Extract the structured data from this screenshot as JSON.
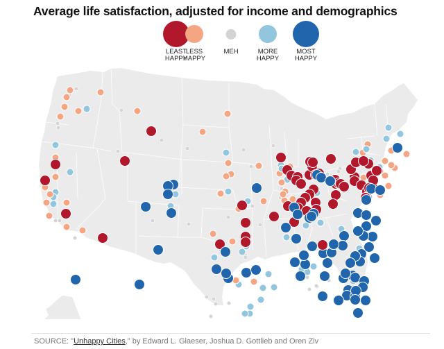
{
  "title": "Average life satisfaction, adjusted for income and demographics",
  "legend": [
    {
      "key": "least",
      "label_line1": "LEAST",
      "label_line2": "HAPPY",
      "color": "#b2182b"
    },
    {
      "key": "less",
      "label_line1": "LESS",
      "label_line2": "HAPPY",
      "color": "#f4a582"
    },
    {
      "key": "meh",
      "label_line1": "MEH",
      "label_line2": "",
      "color": "#d4d4d4"
    },
    {
      "key": "more",
      "label_line1": "MORE",
      "label_line2": "HAPPY",
      "color": "#92c5de"
    },
    {
      "key": "most",
      "label_line1": "MOST",
      "label_line2": "HAPPY",
      "color": "#2166ac"
    }
  ],
  "colors": {
    "land": "#ebebeb",
    "state_border": "#ffffff"
  },
  "source": {
    "prefix": "SOURCE: \"",
    "link_text": "Unhappy Cities",
    "suffix": ",\" by Edward L. Glaeser, Joshua D. Gottlieb and Oren Ziv"
  },
  "chart_data": {
    "type": "scatter",
    "title": "Average life satisfaction, adjusted for income and demographics",
    "subject": "U.S. metropolitan areas (map)",
    "legend_entries": [
      "LEAST HAPPY",
      "LESS HAPPY",
      "MEH",
      "MORE HAPPY",
      "MOST HAPPY"
    ],
    "categories_order": [
      "least",
      "less",
      "meh",
      "more",
      "most"
    ],
    "regional_summary": {
      "rust_belt_great_lakes_northeast": "least",
      "california_bay_area": "least",
      "southeast_gulf_coast_texas": "most",
      "colorado_front_range": "most",
      "alaska": "most",
      "hawaii": "most"
    },
    "dots": [
      "meh",
      "meh",
      "less",
      "less",
      "less",
      "less",
      "more",
      "less",
      "less",
      "meh",
      "meh",
      "more",
      "less",
      "meh",
      "least",
      "meh",
      "least",
      "meh",
      "less",
      "more",
      "least",
      "least",
      "less",
      "less",
      "more",
      "more",
      "less",
      "less",
      "least",
      "less",
      "less",
      "more",
      "meh",
      "meh",
      "less",
      "meh",
      "less",
      "least",
      "less",
      "meh",
      "least",
      "less",
      "meh",
      "meh",
      "less",
      "less",
      "more",
      "least",
      "meh",
      "least",
      "more",
      "meh",
      "meh",
      "most",
      "most",
      "most",
      "more",
      "most",
      "more",
      "most",
      "meh",
      "most",
      "least",
      "most",
      "most",
      "meh",
      "more",
      "more",
      "most",
      "less",
      "more",
      "most",
      "more",
      "meh",
      "less",
      "less",
      "more",
      "less",
      "more",
      "more",
      "meh",
      "meh",
      "more",
      "less",
      "meh",
      "meh",
      "least",
      "least",
      "less",
      "meh",
      "meh",
      "less",
      "least",
      "less",
      "more",
      "less",
      "meh",
      "less",
      "less",
      "least",
      "least",
      "least",
      "least",
      "least",
      "least",
      "least",
      "least",
      "least",
      "least",
      "least",
      "least",
      "least",
      "least",
      "least",
      "least",
      "least",
      "least",
      "least",
      "least",
      "least",
      "least",
      "less",
      "less",
      "less",
      "less",
      "less",
      "more",
      "more",
      "more",
      "meh",
      "meh",
      "meh",
      "least",
      "least",
      "least",
      "least",
      "least",
      "least",
      "least",
      "least",
      "least",
      "least",
      "least",
      "less",
      "less",
      "less",
      "less",
      "less",
      "less",
      "less",
      "least",
      "least",
      "least",
      "least",
      "least",
      "least",
      "least",
      "least",
      "least",
      "least",
      "least",
      "least",
      "less",
      "less",
      "less",
      "less",
      "less",
      "more",
      "more",
      "more",
      "more",
      "more",
      "more",
      "more",
      "most",
      "most",
      "most",
      "less",
      "more",
      "more",
      "meh",
      "meh",
      "meh",
      "meh",
      "most",
      "most",
      "most",
      "most",
      "most",
      "most",
      "most",
      "most",
      "most",
      "most",
      "most",
      "more",
      "meh",
      "meh",
      "meh",
      "most",
      "most",
      "most",
      "most",
      "most",
      "most",
      "most",
      "most",
      "most",
      "most",
      "most",
      "most",
      "most",
      "most",
      "most",
      "most",
      "most",
      "most",
      "most",
      "most",
      "most",
      "most",
      "most",
      "most",
      "most",
      "most",
      "most",
      "most",
      "more",
      "more",
      "more",
      "more",
      "more",
      "more",
      "more",
      "more",
      "more",
      "more",
      "more",
      "more",
      "meh",
      "meh",
      "meh",
      "meh",
      "meh",
      "meh",
      "most",
      "most",
      "most",
      "most",
      "most",
      "most",
      "most",
      "most",
      "most",
      "most",
      "most",
      "most",
      "most",
      "least",
      "more",
      "more",
      "more",
      "more",
      "more",
      "more",
      "more",
      "less",
      "less",
      "meh",
      "meh",
      "meh",
      "meh",
      "most",
      "most",
      "most",
      "most",
      "most",
      "most",
      "most",
      "most",
      "more",
      "more",
      "more",
      "more",
      "more",
      "more",
      "less",
      "meh",
      "meh",
      "meh"
    ]
  }
}
